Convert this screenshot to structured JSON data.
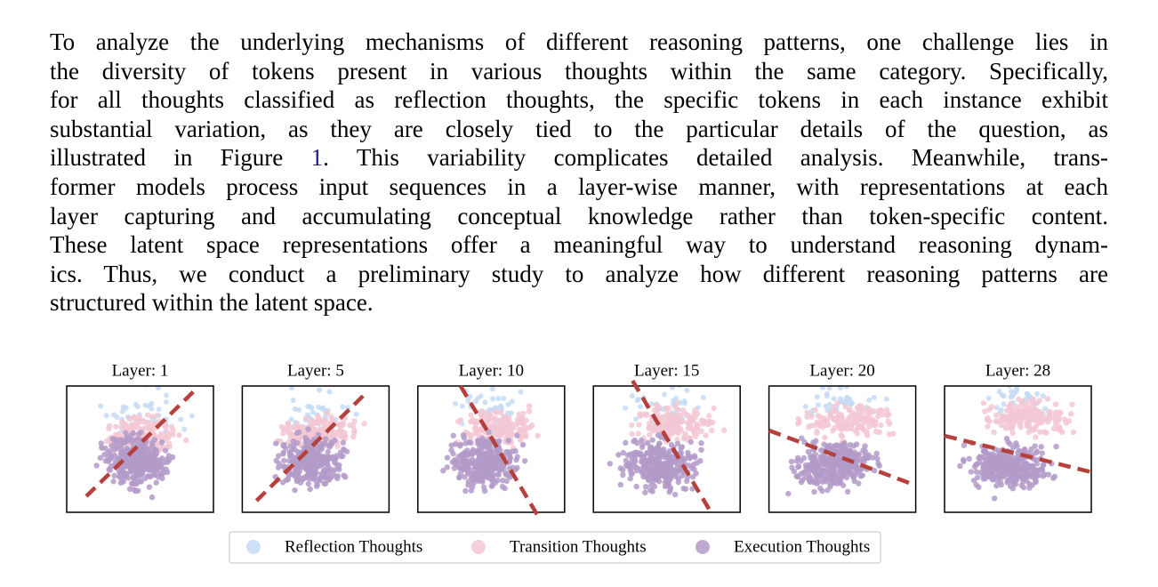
{
  "paragraph": {
    "lines": [
      [
        "To analyze the underlying mechanisms of different reasoning patterns, one challenge lies in"
      ],
      [
        "the diversity of tokens present in various thoughts within the same category. Specifically,"
      ],
      [
        "for all thoughts classified as reflection thoughts, the specific tokens in each instance exhibit"
      ],
      [
        "substantial variation, as they are closely tied to the particular details of the question, as"
      ],
      [
        "illustrated in Figure ",
        "1",
        ". This variability complicates detailed analysis. Meanwhile, trans-"
      ],
      [
        "former models process input sequences in a layer-wise manner, with representations at each"
      ],
      [
        "layer capturing and accumulating conceptual knowledge rather than token-specific content."
      ],
      [
        "These latent space representations offer a meaningful way to understand reasoning dynam-"
      ],
      [
        "ics. Thus, we conduct a preliminary study to analyze how different reasoning patterns are"
      ],
      [
        "structured within the latent space."
      ]
    ]
  },
  "figure": {
    "panels": [
      {
        "title": "Layer: 1"
      },
      {
        "title": "Layer: 5"
      },
      {
        "title": "Layer: 10"
      },
      {
        "title": "Layer: 15"
      },
      {
        "title": "Layer: 20"
      },
      {
        "title": "Layer: 28"
      }
    ],
    "legend": [
      {
        "label": "Reflection Thoughts",
        "color": "#c4dbf3"
      },
      {
        "label": "Transition Thoughts",
        "color": "#f3c7d3"
      },
      {
        "label": "Execution Thoughts",
        "color": "#b39bc9"
      }
    ]
  }
}
